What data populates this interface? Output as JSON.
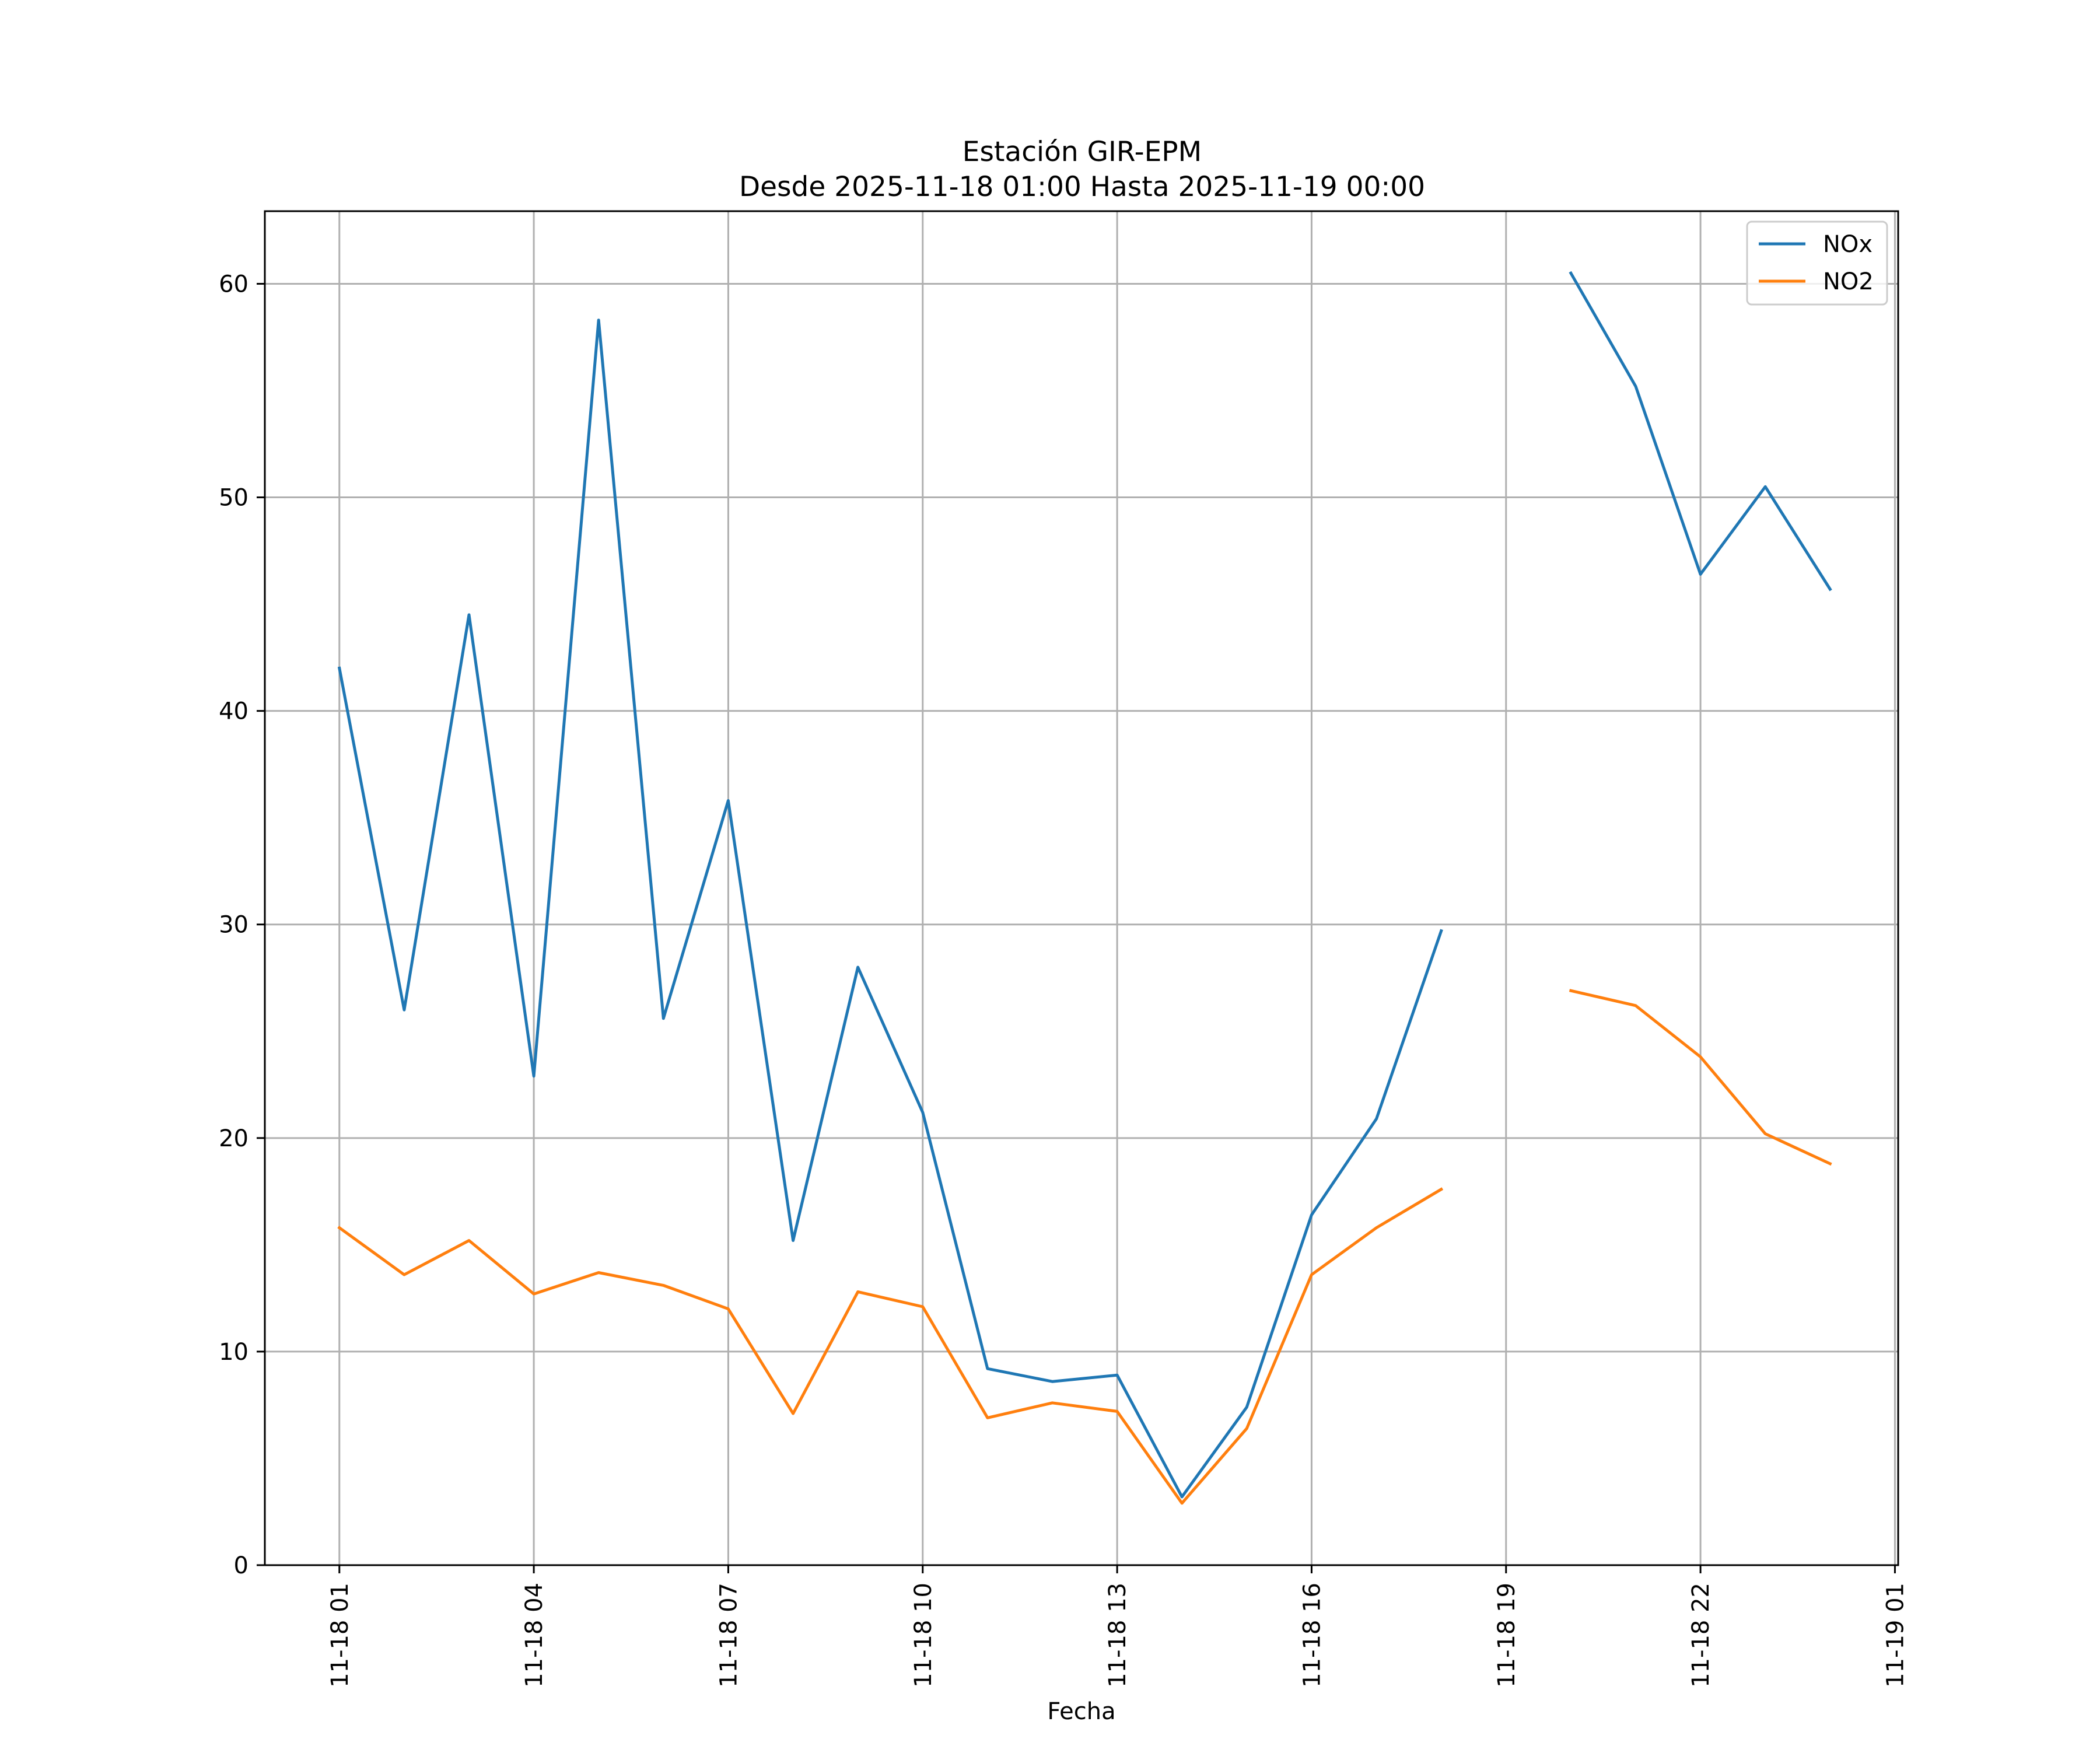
{
  "chart_data": {
    "type": "line",
    "title": "Estación GIR-EPM",
    "subtitle": "Desde 2025-11-18 01:00 Hasta 2025-11-19 00:00",
    "xlabel": "Fecha",
    "ylabel": "",
    "grid": true,
    "legend_position": "top-right",
    "x_hours": [
      1,
      2,
      3,
      4,
      5,
      6,
      7,
      8,
      9,
      10,
      11,
      12,
      13,
      14,
      15,
      16,
      17,
      18,
      19,
      20,
      21,
      22,
      23,
      24
    ],
    "xlim": [
      -0.15,
      25.05
    ],
    "x_ticks": [
      {
        "hour": 1,
        "label": "11-18 01"
      },
      {
        "hour": 4,
        "label": "11-18 04"
      },
      {
        "hour": 7,
        "label": "11-18 07"
      },
      {
        "hour": 10,
        "label": "11-18 10"
      },
      {
        "hour": 13,
        "label": "11-18 13"
      },
      {
        "hour": 16,
        "label": "11-18 16"
      },
      {
        "hour": 19,
        "label": "11-18 19"
      },
      {
        "hour": 22,
        "label": "11-18 22"
      },
      {
        "hour": 25,
        "label": "11-19 01"
      }
    ],
    "ylim": [
      0,
      63.4
    ],
    "y_ticks": [
      0,
      10,
      20,
      30,
      40,
      50,
      60
    ],
    "series": [
      {
        "name": "NOx",
        "color": "#1f77b4",
        "values": [
          42.0,
          26.0,
          44.5,
          22.9,
          58.3,
          25.6,
          35.8,
          15.2,
          28.0,
          21.2,
          9.2,
          8.6,
          8.9,
          3.2,
          7.4,
          16.4,
          20.9,
          29.7,
          null,
          60.5,
          55.2,
          46.4,
          50.5,
          45.7
        ]
      },
      {
        "name": "NO2",
        "color": "#ff7f0e",
        "values": [
          15.8,
          13.6,
          15.2,
          12.7,
          13.7,
          13.1,
          12.0,
          7.1,
          12.8,
          12.1,
          6.9,
          7.6,
          7.2,
          2.9,
          6.4,
          13.6,
          15.8,
          17.6,
          null,
          26.9,
          26.2,
          23.8,
          20.2,
          18.8
        ]
      }
    ]
  }
}
